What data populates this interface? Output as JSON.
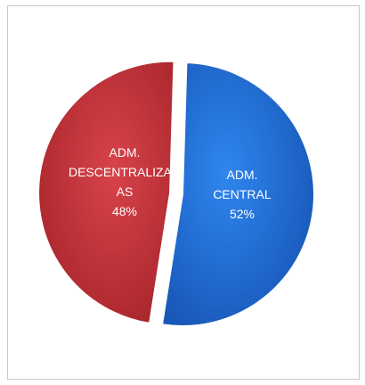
{
  "chart_data": {
    "type": "pie",
    "title": "",
    "slices": [
      {
        "label_lines": [
          "ADM.",
          "CENTRAL",
          "52%"
        ],
        "value": 52,
        "color": "#1f6fd6",
        "exploded": false
      },
      {
        "label_lines": [
          "ADM.",
          "DESCENTRALIZAD",
          "AS",
          "48%"
        ],
        "value": 48,
        "color": "#c8353a",
        "exploded": true
      }
    ],
    "legend": "none"
  }
}
